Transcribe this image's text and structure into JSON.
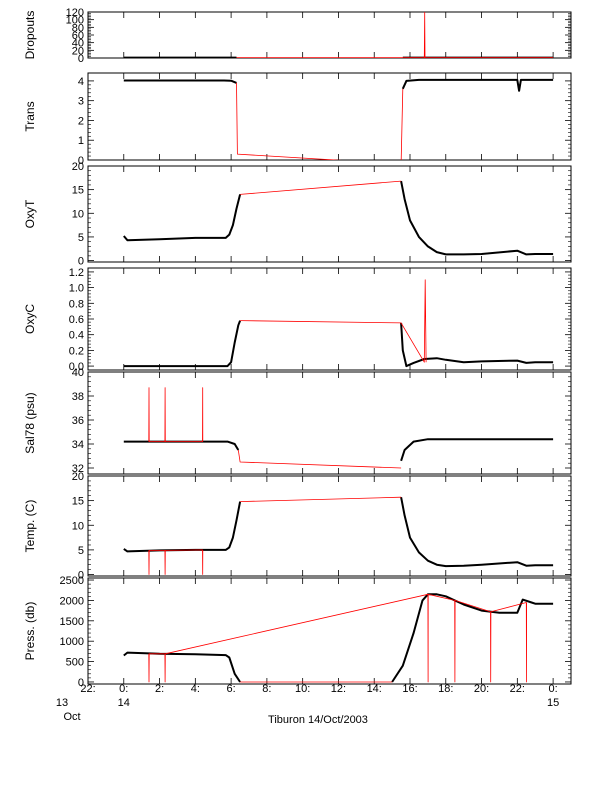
{
  "xaxis": {
    "start_label_line2": "13",
    "start_label_line3": "Oct",
    "ticks": [
      {
        "t": -2,
        "line1": "22:",
        "line2": "13"
      },
      {
        "t": 0,
        "line1": "0:",
        "line2": "14"
      },
      {
        "t": 2,
        "line1": "2:",
        "line2": ""
      },
      {
        "t": 4,
        "line1": "4:",
        "line2": ""
      },
      {
        "t": 6,
        "line1": "6:",
        "line2": ""
      },
      {
        "t": 8,
        "line1": "8:",
        "line2": ""
      },
      {
        "t": 10,
        "line1": "10:",
        "line2": ""
      },
      {
        "t": 12,
        "line1": "12:",
        "line2": ""
      },
      {
        "t": 14,
        "line1": "14:",
        "line2": ""
      },
      {
        "t": 16,
        "line1": "16:",
        "line2": ""
      },
      {
        "t": 18,
        "line1": "18:",
        "line2": ""
      },
      {
        "t": 20,
        "line1": "20:",
        "line2": ""
      },
      {
        "t": 22,
        "line1": "22:",
        "line2": ""
      },
      {
        "t": 24,
        "line1": "0:",
        "line2": "15"
      }
    ],
    "range": [
      -2,
      25
    ],
    "title": "Tiburon 14/Oct/2003"
  },
  "chart_data": [
    {
      "type": "line",
      "ylabel": "Dropouts",
      "ylim": [
        0,
        120
      ],
      "yticks": [
        0,
        20,
        40,
        60,
        80,
        100,
        120
      ],
      "ytick_labels": [
        "0",
        "20",
        "40",
        "60",
        "80",
        "100",
        "120"
      ],
      "series": [
        {
          "color": "#000000",
          "x": [
            0,
            6.3
          ],
          "y": [
            1,
            1
          ]
        },
        {
          "color": "#000000",
          "x": [
            15.6,
            24
          ],
          "y": [
            1,
            1
          ]
        },
        {
          "color": "#ff0000",
          "x": [
            6.3,
            15.6,
            16.8,
            16.82,
            16.84,
            24
          ],
          "y": [
            1,
            1,
            1,
            120,
            1,
            1
          ]
        }
      ]
    },
    {
      "type": "line",
      "ylabel": "Trans",
      "ylim": [
        0,
        4.4
      ],
      "yticks": [
        0,
        1,
        2,
        3,
        4
      ],
      "ytick_labels": [
        "0",
        "1",
        "2",
        "3",
        "4"
      ],
      "series": [
        {
          "color": "#000000",
          "x": [
            0,
            5.5,
            5.6,
            6.0,
            6.3
          ],
          "y": [
            4.02,
            4.02,
            4.02,
            4.01,
            3.9
          ]
        },
        {
          "color": "#000000",
          "x": [
            15.6,
            15.8,
            16.5,
            22,
            22.1,
            22.2,
            24
          ],
          "y": [
            3.6,
            4.0,
            4.05,
            4.05,
            3.5,
            4.05,
            4.05
          ]
        },
        {
          "color": "#ff0000",
          "x": [
            6.3,
            6.35,
            15.5,
            15.6
          ],
          "y": [
            3.9,
            0.3,
            -0.2,
            3.6
          ]
        }
      ]
    },
    {
      "type": "line",
      "ylabel": "OxyT",
      "ylim": [
        -0.3,
        20
      ],
      "yticks": [
        0,
        5,
        10,
        15,
        20
      ],
      "ytick_labels": [
        "0",
        "5",
        "10",
        "15",
        "20"
      ],
      "series": [
        {
          "color": "#000000",
          "x": [
            0,
            0.2,
            2,
            4,
            5.7,
            5.9,
            6.1,
            6.3,
            6.5
          ],
          "y": [
            5.2,
            4.3,
            4.5,
            4.8,
            4.8,
            5.5,
            7.5,
            11,
            14
          ]
        },
        {
          "color": "#000000",
          "x": [
            15.5,
            15.7,
            16,
            16.5,
            17,
            17.5,
            18,
            19,
            20,
            22,
            22.5,
            23,
            24
          ],
          "y": [
            16.8,
            13,
            8.5,
            5,
            3,
            1.8,
            1.3,
            1.3,
            1.4,
            2.1,
            1.3,
            1.4,
            1.4
          ]
        },
        {
          "color": "#ff0000",
          "x": [
            6.5,
            15.5
          ],
          "y": [
            14,
            16.8
          ]
        }
      ]
    },
    {
      "type": "line",
      "ylabel": "OxyC",
      "ylim": [
        -0.05,
        1.25
      ],
      "yticks": [
        0,
        0.2,
        0.4,
        0.6,
        0.8,
        1,
        1.2
      ],
      "ytick_labels": [
        "0.0",
        "0.2",
        "0.4",
        "0.6",
        "0.8",
        "1.0",
        "1.2"
      ],
      "series": [
        {
          "color": "#000000",
          "x": [
            0,
            5.8,
            6.0,
            6.2,
            6.4,
            6.5
          ],
          "y": [
            0,
            0,
            0.05,
            0.3,
            0.52,
            0.58
          ]
        },
        {
          "color": "#000000",
          "x": [
            15.5,
            15.6,
            15.8,
            16.2,
            16.8,
            17.5,
            18,
            19,
            20,
            22,
            22.5,
            23,
            24
          ],
          "y": [
            0.55,
            0.2,
            0.0,
            0.04,
            0.09,
            0.1,
            0.08,
            0.05,
            0.06,
            0.07,
            0.04,
            0.05,
            0.05
          ]
        },
        {
          "color": "#ff0000",
          "x": [
            6.5,
            15.5,
            16.8,
            16.85,
            16.9
          ],
          "y": [
            0.58,
            0.55,
            0.05,
            1.1,
            0.05
          ]
        }
      ]
    },
    {
      "type": "line",
      "ylabel": "Sal78 (psu)",
      "ylim": [
        31.5,
        40
      ],
      "yticks": [
        32,
        34,
        36,
        38,
        40
      ],
      "ytick_labels": [
        "32",
        "34",
        "36",
        "38",
        "40"
      ],
      "series": [
        {
          "color": "#000000",
          "x": [
            0,
            5.8,
            6.2,
            6.4
          ],
          "y": [
            34.2,
            34.2,
            34.0,
            33.5
          ]
        },
        {
          "color": "#000000",
          "x": [
            15.5,
            15.7,
            16.2,
            17,
            24
          ],
          "y": [
            32.6,
            33.5,
            34.2,
            34.4,
            34.4
          ]
        },
        {
          "color": "#ff0000",
          "x": [
            6.4,
            6.5,
            15.5
          ],
          "y": [
            33.5,
            32.5,
            32.0
          ]
        },
        {
          "color": "#ff0000",
          "x": [
            1.4,
            1.41,
            1.42,
            2.3,
            2.31,
            2.32,
            4.4,
            4.41,
            4.42
          ],
          "y": [
            34.2,
            38.7,
            34.2,
            34.2,
            38.7,
            34.2,
            34.2,
            38.7,
            34.2
          ]
        }
      ]
    },
    {
      "type": "line",
      "ylabel": "Temp. (C)",
      "ylim": [
        -0.3,
        20
      ],
      "yticks": [
        0,
        5,
        10,
        15,
        20
      ],
      "ytick_labels": [
        "0",
        "5",
        "10",
        "15",
        "20"
      ],
      "series": [
        {
          "color": "#000000",
          "x": [
            0,
            0.2,
            2,
            4,
            5.7,
            5.9,
            6.1,
            6.3,
            6.5
          ],
          "y": [
            5.2,
            4.7,
            4.9,
            5.0,
            5.0,
            5.5,
            7.5,
            11,
            14.8
          ]
        },
        {
          "color": "#000000",
          "x": [
            15.5,
            15.7,
            16,
            16.5,
            17,
            17.5,
            18,
            19,
            20,
            22,
            22.5,
            23,
            24
          ],
          "y": [
            15.7,
            12,
            7.5,
            4.5,
            2.8,
            2.0,
            1.7,
            1.8,
            2.0,
            2.5,
            1.8,
            1.9,
            1.9
          ]
        },
        {
          "color": "#ff0000",
          "x": [
            6.5,
            15.5
          ],
          "y": [
            14.8,
            15.7
          ]
        },
        {
          "color": "#ff0000",
          "x": [
            1.4,
            1.41,
            1.42,
            2.3,
            2.31,
            2.32,
            4.4,
            4.41,
            4.42
          ],
          "y": [
            4.9,
            0,
            4.9,
            4.9,
            0,
            4.9,
            5.0,
            0,
            5.0
          ]
        }
      ]
    },
    {
      "type": "line",
      "ylabel": "Press. (db)",
      "ylim": [
        -50,
        2550
      ],
      "yticks": [
        0,
        500,
        1000,
        1500,
        2000,
        2500
      ],
      "ytick_labels": [
        "0",
        "500",
        "1000",
        "1500",
        "2000",
        "2500"
      ],
      "series": [
        {
          "color": "#000000",
          "x": [
            0,
            0.2,
            2,
            4,
            5.7,
            5.9,
            6.2,
            6.5
          ],
          "y": [
            650,
            720,
            690,
            680,
            660,
            600,
            200,
            0
          ]
        },
        {
          "color": "#000000",
          "x": [
            15.0,
            15.6,
            16.2,
            16.7,
            17.0,
            17.5,
            18.0,
            19.0,
            20.0,
            21.0,
            22.0,
            22.3,
            22.8,
            23.0,
            24.0
          ],
          "y": [
            0,
            400,
            1200,
            2000,
            2150,
            2150,
            2100,
            1900,
            1750,
            1700,
            1700,
            2020,
            1950,
            1920,
            1920
          ]
        },
        {
          "color": "#ff0000",
          "x": [
            6.5,
            15.0
          ],
          "y": [
            0,
            0
          ]
        },
        {
          "color": "#ff0000",
          "x": [
            1.4,
            1.41,
            1.42,
            2.3,
            2.31,
            2.32,
            17.0,
            17.01,
            17.02,
            18.5,
            18.51,
            18.52,
            20.5,
            20.51,
            20.52,
            22.5,
            22.51,
            22.52
          ],
          "y": [
            690,
            0,
            690,
            690,
            0,
            690,
            2150,
            0,
            2150,
            2000,
            0,
            2000,
            1720,
            0,
            1720,
            1950,
            0,
            1950
          ]
        }
      ]
    }
  ]
}
